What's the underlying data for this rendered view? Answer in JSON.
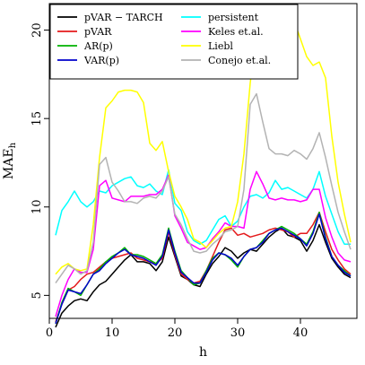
{
  "chart_data": {
    "type": "line",
    "xlabel": "h",
    "ylabel": "MAE",
    "ylabel_sub": "h",
    "xlim": [
      0,
      49
    ],
    "ylim": [
      3.7,
      21.5
    ],
    "xticks": [
      0,
      10,
      20,
      30,
      40
    ],
    "yticks": [
      5,
      10,
      15,
      20
    ],
    "grid": false,
    "legend_placement": "top-left",
    "x": [
      1,
      2,
      3,
      4,
      5,
      6,
      7,
      8,
      9,
      10,
      11,
      12,
      13,
      14,
      15,
      16,
      17,
      18,
      19,
      20,
      21,
      22,
      23,
      24,
      25,
      26,
      27,
      28,
      29,
      30,
      31,
      32,
      33,
      34,
      35,
      36,
      37,
      38,
      39,
      40,
      41,
      42,
      43,
      44,
      45,
      46,
      47,
      48
    ],
    "series": [
      {
        "name": "pVAR − TARCH",
        "color": "#000000",
        "values": [
          3.2,
          4.0,
          4.4,
          4.7,
          4.8,
          4.7,
          5.2,
          5.6,
          5.8,
          6.2,
          6.6,
          7.0,
          7.3,
          6.9,
          6.9,
          6.8,
          6.4,
          6.9,
          8.3,
          7.2,
          6.1,
          5.9,
          5.6,
          5.5,
          6.2,
          6.8,
          7.2,
          7.7,
          7.5,
          7.1,
          7.4,
          7.6,
          7.5,
          7.9,
          8.3,
          8.6,
          8.8,
          8.4,
          8.3,
          8.1,
          7.5,
          8.1,
          9.0,
          8.0,
          7.1,
          6.6,
          6.2,
          6.0
        ]
      },
      {
        "name": "pVAR",
        "color": "#e41a1c",
        "values": [
          3.5,
          4.5,
          5.3,
          5.5,
          5.9,
          6.2,
          6.3,
          6.6,
          6.9,
          7.1,
          7.2,
          7.3,
          7.4,
          7.1,
          7.0,
          6.9,
          6.8,
          7.1,
          8.6,
          7.3,
          6.2,
          5.9,
          5.7,
          5.8,
          6.4,
          7.2,
          8.0,
          8.7,
          8.8,
          8.4,
          8.5,
          8.3,
          8.4,
          8.5,
          8.7,
          8.8,
          8.7,
          8.6,
          8.3,
          8.5,
          8.5,
          9.0,
          9.7,
          8.6,
          7.6,
          7.0,
          6.5,
          6.2
        ]
      },
      {
        "name": "AR(p)",
        "color": "#00b300",
        "values": [
          3.4,
          4.6,
          5.4,
          5.2,
          5.0,
          5.6,
          6.2,
          6.5,
          6.9,
          7.2,
          7.4,
          7.7,
          7.3,
          7.3,
          7.2,
          7.0,
          6.8,
          7.3,
          8.8,
          7.5,
          6.4,
          6.0,
          5.6,
          5.7,
          6.4,
          7.1,
          7.4,
          7.3,
          7.0,
          6.6,
          7.2,
          7.6,
          7.7,
          8.1,
          8.5,
          8.7,
          8.9,
          8.7,
          8.5,
          8.2,
          7.9,
          8.6,
          9.7,
          8.3,
          7.2,
          6.7,
          6.4,
          6.1
        ]
      },
      {
        "name": "VAR(p)",
        "color": "#0000cc",
        "values": [
          3.4,
          4.5,
          5.3,
          5.2,
          5.1,
          5.6,
          6.2,
          6.4,
          6.8,
          7.1,
          7.4,
          7.6,
          7.3,
          7.2,
          7.1,
          6.9,
          6.7,
          7.2,
          8.7,
          7.4,
          6.3,
          6.0,
          5.7,
          5.7,
          6.3,
          7.0,
          7.4,
          7.3,
          7.1,
          6.7,
          7.2,
          7.6,
          7.7,
          8.0,
          8.5,
          8.7,
          8.8,
          8.6,
          8.4,
          8.2,
          7.8,
          8.5,
          9.6,
          8.2,
          7.2,
          6.7,
          6.3,
          6.1
        ]
      },
      {
        "name": "persistent",
        "color": "#00ffff",
        "values": [
          8.4,
          9.8,
          10.3,
          10.9,
          10.3,
          10.0,
          10.3,
          10.9,
          10.8,
          11.2,
          11.4,
          11.6,
          11.7,
          11.2,
          11.1,
          11.3,
          10.9,
          10.7,
          12.1,
          10.2,
          9.8,
          8.6,
          8.1,
          7.9,
          8.1,
          8.7,
          9.3,
          9.5,
          8.9,
          9.2,
          10.0,
          10.6,
          10.7,
          10.5,
          10.8,
          11.5,
          11.0,
          11.1,
          10.9,
          10.7,
          10.5,
          11.0,
          12.0,
          10.6,
          9.6,
          8.6,
          7.9,
          7.9
        ]
      },
      {
        "name": "Keles et.al.",
        "color": "#ff00ff",
        "values": [
          3.8,
          5.0,
          5.9,
          6.5,
          6.3,
          6.3,
          7.6,
          11.2,
          11.5,
          10.5,
          10.4,
          10.3,
          10.6,
          10.6,
          10.6,
          10.7,
          10.7,
          11.0,
          11.8,
          9.5,
          8.8,
          8.0,
          7.8,
          7.6,
          7.7,
          8.2,
          8.6,
          9.1,
          8.9,
          8.9,
          8.8,
          11.0,
          12.0,
          11.3,
          10.5,
          10.4,
          10.5,
          10.4,
          10.4,
          10.3,
          10.4,
          11.0,
          11.0,
          9.4,
          8.3,
          7.4,
          7.0,
          6.9
        ]
      },
      {
        "name": "Liebl",
        "color": "#ffff00",
        "values": [
          6.2,
          6.6,
          6.8,
          6.5,
          6.4,
          6.5,
          9.0,
          12.8,
          15.6,
          16.0,
          16.5,
          16.6,
          16.6,
          16.5,
          15.9,
          13.6,
          13.2,
          13.7,
          12.0,
          10.6,
          10.0,
          9.3,
          8.2,
          8.0,
          7.7,
          8.1,
          8.5,
          8.8,
          8.9,
          10.3,
          13.0,
          17.0,
          20.0,
          20.2,
          20.5,
          20.6,
          20.6,
          20.5,
          20.5,
          19.5,
          18.5,
          18.0,
          18.2,
          17.3,
          14.0,
          11.4,
          9.6,
          8.0
        ]
      },
      {
        "name": "Conejo et.al.",
        "color": "#b3b3b3",
        "values": [
          5.7,
          6.2,
          6.7,
          6.5,
          6.2,
          6.4,
          8.0,
          12.4,
          12.8,
          11.4,
          10.9,
          10.3,
          10.3,
          10.2,
          10.5,
          10.6,
          10.5,
          10.9,
          11.7,
          9.6,
          9.0,
          8.2,
          7.5,
          7.4,
          7.5,
          7.9,
          8.2,
          8.6,
          8.7,
          8.9,
          11.0,
          15.8,
          16.4,
          14.8,
          13.3,
          13.0,
          13.0,
          12.9,
          13.2,
          13.0,
          12.7,
          13.3,
          14.2,
          12.8,
          11.2,
          9.7,
          8.6,
          7.6
        ]
      }
    ]
  }
}
